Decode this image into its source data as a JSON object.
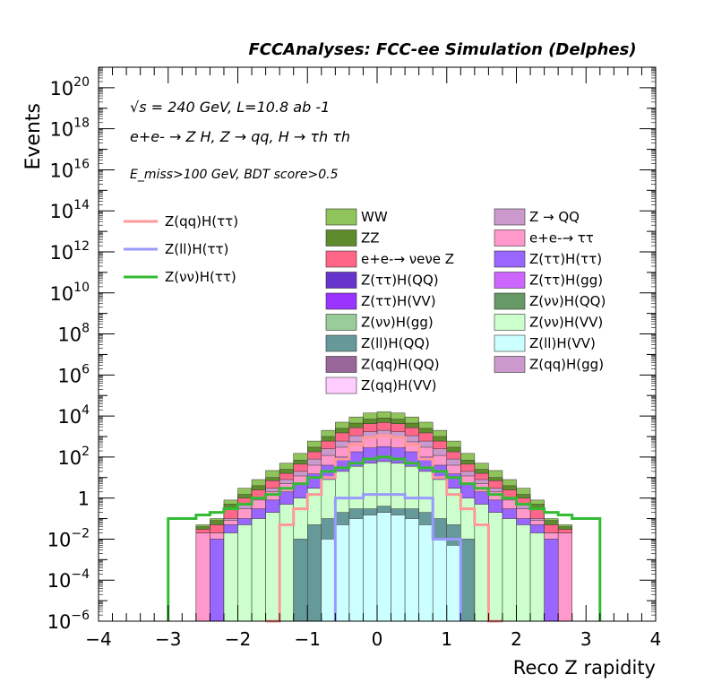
{
  "header": {
    "title": "FCCAnalyses: FCC-ee Simulation (Delphes)"
  },
  "annotations": {
    "energy_lumi": "√s = 240 GeV, L=10.8 ab -1",
    "process": "e+e- → Z H, Z → qq, H → τh τh",
    "selection": "E_miss>100 GeV, BDT score>0.5"
  },
  "chart_data": {
    "type": "bar",
    "title": "FCCAnalyses: FCC-ee Simulation (Delphes)",
    "xlabel": "Reco Z rapidity",
    "ylabel": "Events",
    "xlim": [
      -4,
      4
    ],
    "ylim": [
      1e-06,
      1e+21
    ],
    "log_y": true,
    "x_ticks": [
      "−4",
      "−3",
      "−2",
      "−1",
      "0",
      "1",
      "2",
      "3",
      "4"
    ],
    "y_ticks": [
      {
        "base": "10",
        "exp": "−6",
        "value": 1e-06
      },
      {
        "base": "10",
        "exp": "−4",
        "value": 0.0001
      },
      {
        "base": "10",
        "exp": "−2",
        "value": 0.01
      },
      {
        "base": "1",
        "exp": "",
        "value": 1
      },
      {
        "base": "10",
        "exp": "2",
        "value": 100.0
      },
      {
        "base": "10",
        "exp": "4",
        "value": 10000.0
      },
      {
        "base": "10",
        "exp": "6",
        "value": 1000000.0
      },
      {
        "base": "10",
        "exp": "8",
        "value": 100000000.0
      },
      {
        "base": "10",
        "exp": "10",
        "value": 10000000000.0
      },
      {
        "base": "10",
        "exp": "12",
        "value": 1000000000000.0
      },
      {
        "base": "10",
        "exp": "14",
        "value": 100000000000000.0
      },
      {
        "base": "10",
        "exp": "16",
        "value": 1e+16
      },
      {
        "base": "10",
        "exp": "18",
        "value": 1e+18
      },
      {
        "base": "10",
        "exp": "20",
        "value": 1e+20
      }
    ],
    "bin_edges": [
      -4.0,
      -3.8,
      -3.6,
      -3.4,
      -3.2,
      -3.0,
      -2.8,
      -2.6,
      -2.4,
      -2.2,
      -2.0,
      -1.8,
      -1.6,
      -1.4,
      -1.2,
      -1.0,
      -0.8,
      -0.6,
      -0.4,
      -0.2,
      0.0,
      0.2,
      0.4,
      0.6,
      0.8,
      1.0,
      1.2,
      1.4,
      1.6,
      1.8,
      2.0,
      2.2,
      2.4,
      2.6,
      2.8,
      3.0,
      3.2,
      3.4,
      3.6,
      3.8,
      4.0
    ],
    "grid": false,
    "legend_position": "top",
    "stack_totals": [
      {
        "name": "WW",
        "color": "#8fc45a",
        "values": [
          0,
          0,
          0,
          0,
          0,
          0,
          0,
          0.05,
          0.1,
          0.8,
          3,
          8,
          22,
          50,
          150,
          600,
          2000,
          5000,
          9000,
          14000,
          16000,
          14000,
          9000,
          5000,
          2000,
          600,
          150,
          50,
          22,
          8,
          3,
          0.8,
          0.1,
          0.05,
          0,
          0,
          0,
          0,
          0,
          0
        ]
      },
      {
        "name": "ZZ",
        "color": "#5e8c2c",
        "values": [
          0,
          0,
          0,
          0,
          0,
          0,
          0,
          0.04,
          0.08,
          0.5,
          1.5,
          4,
          10,
          25,
          70,
          300,
          1000,
          2500,
          4500,
          7000,
          8000,
          7000,
          4500,
          2500,
          1000,
          300,
          70,
          25,
          10,
          4,
          1.5,
          0.5,
          0.08,
          0.04,
          0,
          0,
          0,
          0,
          0,
          0
        ]
      },
      {
        "name": "e+e-→ νeνe Z",
        "color": "#ff6688",
        "values": [
          0,
          0,
          0,
          0,
          0,
          0,
          0,
          0.03,
          0.05,
          0.3,
          1,
          2.5,
          7,
          16,
          45,
          180,
          600,
          1500,
          2700,
          4200,
          4800,
          4200,
          2700,
          1500,
          600,
          180,
          45,
          16,
          7,
          2.5,
          1,
          0.3,
          0.05,
          0.03,
          0,
          0,
          0,
          0,
          0,
          0
        ]
      },
      {
        "name": "Z → QQ",
        "color": "#cc99cc",
        "values": [
          0,
          0,
          0,
          0,
          0,
          0,
          0,
          0.02,
          0.02,
          0.1,
          0.5,
          1,
          3,
          8,
          20,
          80,
          250,
          600,
          1100,
          1700,
          2000,
          1700,
          1100,
          600,
          250,
          80,
          20,
          8,
          3,
          1,
          0.5,
          0.1,
          0.02,
          0.02,
          0,
          0,
          0,
          0,
          0,
          0
        ]
      },
      {
        "name": "e+e-→ ττ",
        "color": "#ff99cc",
        "values": [
          0,
          0,
          0,
          0,
          0,
          0,
          0,
          0.02,
          0.02,
          0.08,
          0.3,
          0.8,
          2,
          5,
          12,
          40,
          120,
          300,
          550,
          900,
          1000,
          900,
          550,
          300,
          120,
          40,
          12,
          5,
          2,
          0.8,
          0.3,
          0.08,
          0.02,
          0.02,
          0,
          0,
          0,
          0,
          0,
          0
        ]
      },
      {
        "name": "Z(ττ)H(ττ)",
        "color": "#9966ff",
        "values": [
          0,
          0,
          0,
          0,
          0,
          0,
          0,
          0,
          0.01,
          0.05,
          0.1,
          0.3,
          0.8,
          2,
          5,
          15,
          40,
          100,
          180,
          280,
          320,
          280,
          180,
          100,
          40,
          15,
          5,
          2,
          0.8,
          0.3,
          0.1,
          0.05,
          0.01,
          0,
          0,
          0,
          0,
          0,
          0,
          0
        ]
      },
      {
        "name": "Z(νν)H(VV)",
        "color": "#ccffcc",
        "values": [
          0,
          0,
          0,
          0,
          0,
          0,
          0,
          0,
          0,
          0.02,
          0.05,
          0.1,
          0.2,
          0.5,
          1,
          3,
          8,
          20,
          35,
          50,
          60,
          50,
          35,
          20,
          8,
          3,
          1,
          0.5,
          0.2,
          0.1,
          0.05,
          0.02,
          0,
          0,
          0,
          0,
          0,
          0,
          0,
          0
        ]
      },
      {
        "name": "Z(ll)H(QQ)",
        "color": "#669999",
        "values": [
          0,
          0,
          0,
          0,
          0,
          0,
          0,
          0,
          0,
          0,
          0,
          0,
          0,
          0,
          0.01,
          0.05,
          0.1,
          0.2,
          0.3,
          0.3,
          0.4,
          0.3,
          0.3,
          0.2,
          0.1,
          0.05,
          0.01,
          0,
          0,
          0,
          0,
          0,
          0,
          0,
          0,
          0,
          0,
          0,
          0,
          0
        ]
      },
      {
        "name": "Z(ll)H(VV)",
        "color": "#ccffff",
        "values": [
          0,
          0,
          0,
          0,
          0,
          0,
          0,
          0,
          0,
          0,
          0,
          0,
          0,
          0,
          0,
          0,
          0.01,
          0.05,
          0.1,
          0.15,
          0.2,
          0.15,
          0.1,
          0.05,
          0.01,
          0.005,
          0,
          0,
          0,
          0,
          0,
          0,
          0,
          0,
          0,
          0,
          0,
          0,
          0,
          0
        ]
      }
    ],
    "signal_lines": [
      {
        "name": "Z(qq)H(ττ)",
        "color": "#ff9999",
        "values": [
          0,
          0,
          0,
          0,
          0,
          0,
          0,
          0,
          0,
          0,
          0,
          0,
          1e-06,
          0.05,
          0.3,
          1.5,
          10,
          80,
          400,
          900,
          1100,
          900,
          400,
          80,
          10,
          1.5,
          0.3,
          0.05,
          1e-06,
          0,
          0,
          0,
          0,
          0,
          0,
          0,
          0,
          0,
          0,
          0
        ]
      },
      {
        "name": "Z(ll)H(ττ)",
        "color": "#9999ff",
        "values": [
          0,
          0,
          0,
          0,
          0,
          0,
          0,
          0,
          0,
          0,
          0,
          0,
          0,
          0,
          0,
          0,
          0,
          1,
          1,
          1.5,
          1.5,
          1.5,
          1,
          1,
          0.01,
          0.01,
          0,
          0,
          0,
          0,
          0,
          0,
          0,
          0,
          0,
          0,
          0,
          0,
          0,
          0
        ]
      },
      {
        "name": "Z(νν)H(ττ)",
        "color": "#33bb33",
        "values": [
          0,
          0,
          0,
          0,
          0,
          0.1,
          0.1,
          0.15,
          0.2,
          0.3,
          0.5,
          1,
          1.5,
          3,
          5,
          10,
          20,
          30,
          50,
          80,
          100,
          80,
          50,
          30,
          20,
          10,
          5,
          3,
          1.5,
          1,
          0.5,
          0.3,
          0.2,
          0.15,
          0.1,
          0.1,
          0,
          0,
          0,
          0
        ]
      }
    ],
    "legend_lines": [
      "Z(qq)H(ττ)",
      "Z(ll)H(ττ)",
      "Z(νν)H(ττ)"
    ],
    "legend_fills": [
      {
        "name": "WW",
        "color": "#8fc45a"
      },
      {
        "name": "Z → QQ",
        "color": "#cc99cc"
      },
      {
        "name": "ZZ",
        "color": "#5e8c2c"
      },
      {
        "name": "e+e-→ ττ",
        "color": "#ff99cc"
      },
      {
        "name": "e+e-→ νeνe Z",
        "color": "#ff6688"
      },
      {
        "name": "Z(ττ)H(ττ)",
        "color": "#9966ff"
      },
      {
        "name": "Z(ττ)H(QQ)",
        "color": "#6633cc"
      },
      {
        "name": "Z(ττ)H(gg)",
        "color": "#cc66ff"
      },
      {
        "name": "Z(ττ)H(VV)",
        "color": "#9933ff"
      },
      {
        "name": "Z(νν)H(QQ)",
        "color": "#669966"
      },
      {
        "name": "Z(νν)H(gg)",
        "color": "#99cc99"
      },
      {
        "name": "Z(νν)H(VV)",
        "color": "#ccffcc"
      },
      {
        "name": "Z(ll)H(QQ)",
        "color": "#669999"
      },
      {
        "name": "Z(ll)H(VV)",
        "color": "#ccffff"
      },
      {
        "name": "Z(qq)H(QQ)",
        "color": "#996699"
      },
      {
        "name": "Z(qq)H(gg)",
        "color": "#cc99cc"
      },
      {
        "name": "Z(qq)H(VV)",
        "color": "#ffccff"
      }
    ]
  }
}
